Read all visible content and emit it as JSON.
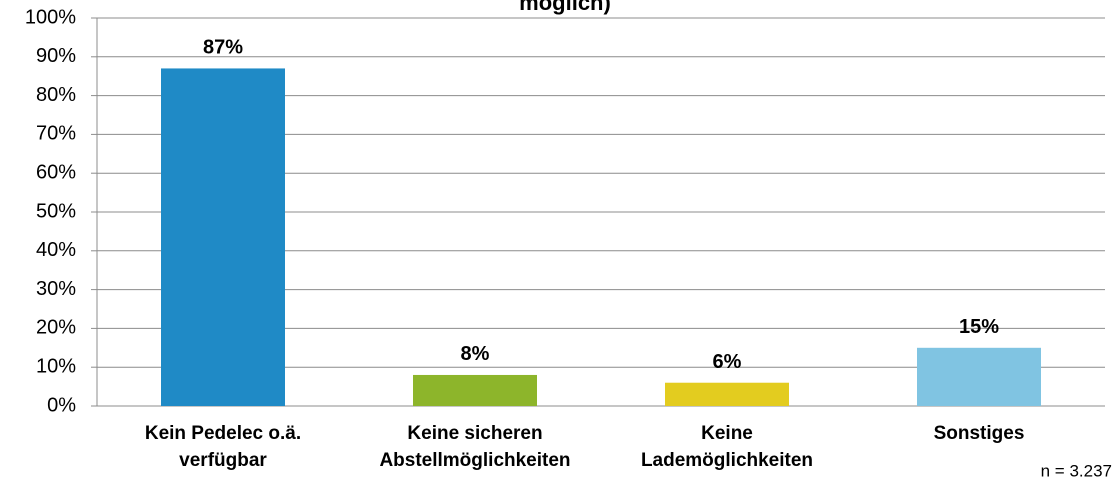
{
  "chart_data": {
    "type": "bar",
    "title": "möglich)",
    "categories": [
      [
        "Kein Pedelec o.ä.",
        "verfügbar"
      ],
      [
        "Keine sicheren",
        "Abstellmöglichkeiten"
      ],
      [
        "Keine",
        "Lademöglichkeiten"
      ],
      [
        "Sonstiges"
      ]
    ],
    "values": [
      87,
      8,
      6,
      15
    ],
    "value_labels": [
      "87%",
      "8%",
      "6%",
      "15%"
    ],
    "colors": [
      "#1f8ac6",
      "#8db52b",
      "#e3cc1f",
      "#80c4e2"
    ],
    "ylim": [
      0,
      100
    ],
    "yticks": [
      {
        "value": 0,
        "label": "0%"
      },
      {
        "value": 10,
        "label": "10%"
      },
      {
        "value": 20,
        "label": "20%"
      },
      {
        "value": 30,
        "label": "30%"
      },
      {
        "value": 40,
        "label": "40%"
      },
      {
        "value": 50,
        "label": "50%"
      },
      {
        "value": 60,
        "label": "60%"
      },
      {
        "value": 70,
        "label": "70%"
      },
      {
        "value": 80,
        "label": "80%"
      },
      {
        "value": 90,
        "label": "90%"
      },
      {
        "value": 100,
        "label": "100%"
      }
    ],
    "grid": true,
    "annotation": "n = 3.237"
  }
}
